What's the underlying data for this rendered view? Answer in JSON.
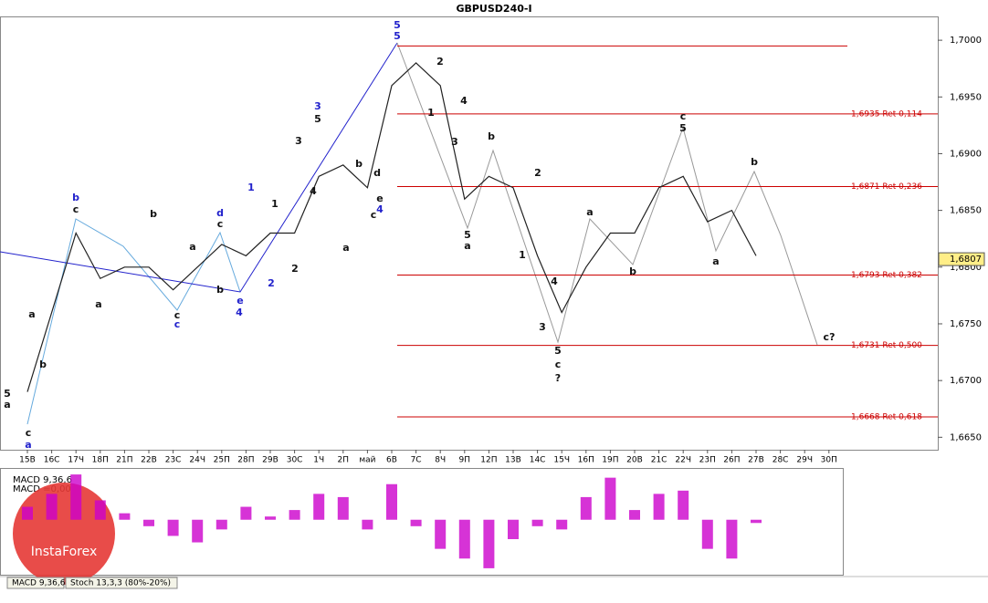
{
  "chart_data": [
    {
      "type": "line",
      "title": "GBPUSD240-I",
      "color": "#222222",
      "categories": [
        "15В",
        "16С",
        "17Ч",
        "18П",
        "21П",
        "22В",
        "23С",
        "24Ч",
        "25П",
        "28П",
        "29В",
        "30С",
        "1Ч",
        "2П",
        "май",
        "6В",
        "7С",
        "8Ч",
        "9П",
        "12П",
        "13В",
        "14С",
        "15Ч",
        "16П",
        "19П",
        "20В",
        "21С",
        "22Ч",
        "23П",
        "26П",
        "27В",
        "28С",
        "29Ч",
        "30П"
      ],
      "values": [
        1.669,
        1.676,
        1.683,
        1.679,
        1.68,
        1.68,
        1.678,
        1.68,
        1.682,
        1.681,
        1.683,
        1.683,
        1.688,
        1.689,
        1.687,
        1.696,
        1.698,
        1.696,
        1.686,
        1.688,
        1.687,
        1.681,
        1.676,
        1.68,
        1.683,
        1.683,
        1.687,
        1.688,
        1.684,
        1.685,
        1.681,
        null,
        null,
        null
      ],
      "ylim": [
        1.6639,
        1.7021
      ],
      "yticks": [
        {
          "value": 1.665,
          "label": "1,6650"
        },
        {
          "value": 1.67,
          "label": "1,6700"
        },
        {
          "value": 1.675,
          "label": "1,6750"
        },
        {
          "value": 1.68,
          "label": "1,6800"
        },
        {
          "value": 1.685,
          "label": "1,6850"
        },
        {
          "value": 1.69,
          "label": "1,6900"
        },
        {
          "value": 1.695,
          "label": "1,6950"
        },
        {
          "value": 1.7,
          "label": "1,7000"
        }
      ],
      "last_price": {
        "value": 1.6807,
        "label": "1,6807"
      },
      "levels": [
        {
          "value": 1.6995
        },
        {
          "value": 1.6935,
          "label": "1,6935 Ret 0,114"
        },
        {
          "value": 1.6871,
          "label": "1,6871 Ret 0,236"
        },
        {
          "value": 1.6793,
          "label": "1,6793 Ret 0,382"
        },
        {
          "value": 1.6731,
          "label": "1,6731 Ret 0,500"
        },
        {
          "value": 1.6668,
          "label": "1,6668 Ret 0,618"
        }
      ],
      "level_color": "#cc0000",
      "annotations": [
        {
          "text": "5",
          "color": "blue"
        },
        {
          "text": "5",
          "color": "blue"
        },
        {
          "text": "3",
          "color": "blue"
        },
        {
          "text": "5",
          "color": "black"
        },
        {
          "text": "3",
          "color": "black"
        },
        {
          "text": "4",
          "color": "black"
        },
        {
          "text": "1",
          "color": "blue"
        },
        {
          "text": "1",
          "color": "black"
        },
        {
          "text": "2",
          "color": "blue"
        },
        {
          "text": "2",
          "color": "black"
        },
        {
          "text": "b",
          "color": "blue"
        },
        {
          "text": "c",
          "color": "black"
        },
        {
          "text": "d",
          "color": "blue"
        },
        {
          "text": "c",
          "color": "black"
        },
        {
          "text": "e",
          "color": "blue"
        },
        {
          "text": "4",
          "color": "blue"
        },
        {
          "text": "b",
          "color": "black"
        },
        {
          "text": "a",
          "color": "black"
        },
        {
          "text": "b",
          "color": "black"
        },
        {
          "text": "c",
          "color": "black"
        },
        {
          "text": "c",
          "color": "blue"
        },
        {
          "text": "a",
          "color": "black"
        },
        {
          "text": "a",
          "color": "black"
        },
        {
          "text": "b",
          "color": "black"
        },
        {
          "text": "5",
          "color": "black"
        },
        {
          "text": "a",
          "color": "black"
        },
        {
          "text": "c",
          "color": "black"
        },
        {
          "text": "a",
          "color": "blue"
        },
        {
          "text": "2",
          "color": "black"
        },
        {
          "text": "1",
          "color": "black"
        },
        {
          "text": "4",
          "color": "black"
        },
        {
          "text": "3",
          "color": "black"
        },
        {
          "text": "5",
          "color": "black"
        },
        {
          "text": "a",
          "color": "black"
        },
        {
          "text": "b",
          "color": "black"
        },
        {
          "text": "2",
          "color": "black"
        },
        {
          "text": "1",
          "color": "black"
        },
        {
          "text": "4",
          "color": "black"
        },
        {
          "text": "3",
          "color": "black"
        },
        {
          "text": "5",
          "color": "black"
        },
        {
          "text": "c",
          "color": "black"
        },
        {
          "text": "?",
          "color": "black"
        },
        {
          "text": "a",
          "color": "black"
        },
        {
          "text": "b",
          "color": "black"
        },
        {
          "text": "c",
          "color": "black"
        },
        {
          "text": "5",
          "color": "black"
        },
        {
          "text": "a",
          "color": "black"
        },
        {
          "text": "b",
          "color": "black"
        },
        {
          "text": "c?",
          "color": "black"
        },
        {
          "text": "d",
          "color": "black"
        },
        {
          "text": "e",
          "color": "black"
        },
        {
          "text": "4",
          "color": "blue"
        },
        {
          "text": "c",
          "color": "black"
        },
        {
          "text": "a",
          "color": "black"
        },
        {
          "text": "b",
          "color": "black"
        }
      ]
    },
    {
      "type": "bar",
      "title": "MACD 9,36,6",
      "subtitle": "MACD =0,00",
      "color": "#cc00cc",
      "values": [
        0.0004,
        0.0008,
        0.0014,
        0.0006,
        0.0002,
        -0.0002,
        -0.0005,
        -0.0007,
        -0.0003,
        0.0004,
        0.0001,
        0.0003,
        0.0008,
        0.0007,
        -0.0003,
        0.0011,
        -0.0002,
        -0.0009,
        -0.0012,
        -0.0015,
        -0.0006,
        -0.0002,
        -0.0003,
        0.0007,
        0.0013,
        0.0003,
        0.0008,
        0.0009,
        -0.0009,
        -0.0012,
        -0.0001,
        null,
        null,
        null
      ],
      "ylim": [
        -0.0017,
        0.0016
      ],
      "tabs": [
        "MACD 9,36,6",
        "Stoch 13,3,3 (80%-20%)"
      ],
      "logo": "InstaForex"
    }
  ]
}
